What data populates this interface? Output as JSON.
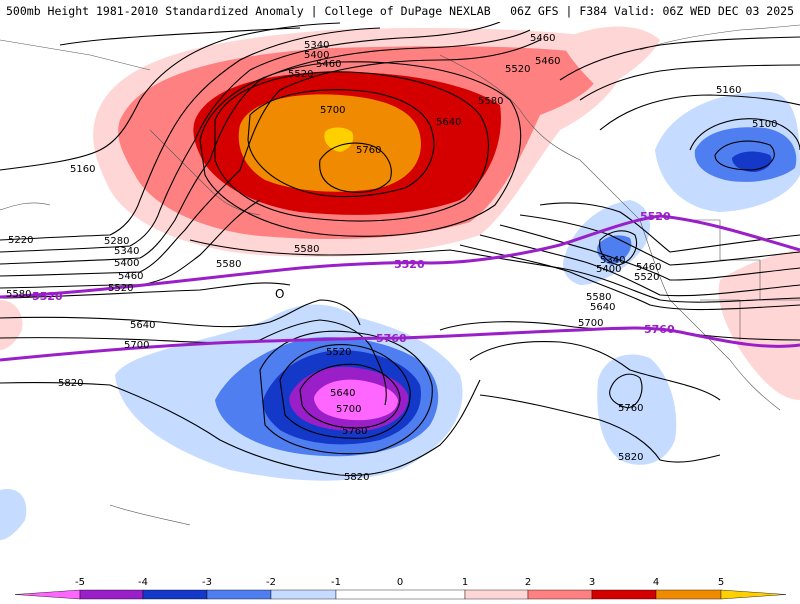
{
  "header": {
    "left_title": "500mb Height 1981-2010 Standardized Anomaly | College of DuPage NEXLAB",
    "right_title": "06Z GFS | F384 Valid: 06Z WED DEC 03 2025"
  },
  "colors": {
    "purple_contour": "#9a1fc8",
    "neg5": "#ff66ff",
    "neg4": "#9a1fc8",
    "neg3": "#1438c8",
    "neg2": "#4f7ef0",
    "neg1": "#c5dbff",
    "pos1": "#ffd6d6",
    "pos2": "#ff8080",
    "pos3": "#d40000",
    "pos4": "#f08a00",
    "pos5": "#ffd000"
  },
  "contour_labels": [
    "5340",
    "5400",
    "5460",
    "5520",
    "5460",
    "5520",
    "5580",
    "5700",
    "5640",
    "5760",
    "5160",
    "5220",
    "5280",
    "5340",
    "5400",
    "5460",
    "5520",
    "5580",
    "5580",
    "5580",
    "5460",
    "5160",
    "5100",
    "5340",
    "5400",
    "5460",
    "5520",
    "5580",
    "5640",
    "5700",
    "5640",
    "5700",
    "5820",
    "5520",
    "5640",
    "5700",
    "5760",
    "5820",
    "5760",
    "5820"
  ],
  "purple_labels": [
    "5520",
    "5520",
    "5520",
    "5760",
    "5760"
  ],
  "low_marker": "O",
  "legend": {
    "ticks": [
      "-5",
      "-4",
      "-3",
      "-2",
      "-1",
      "0",
      "1",
      "2",
      "3",
      "4",
      "5"
    ]
  }
}
